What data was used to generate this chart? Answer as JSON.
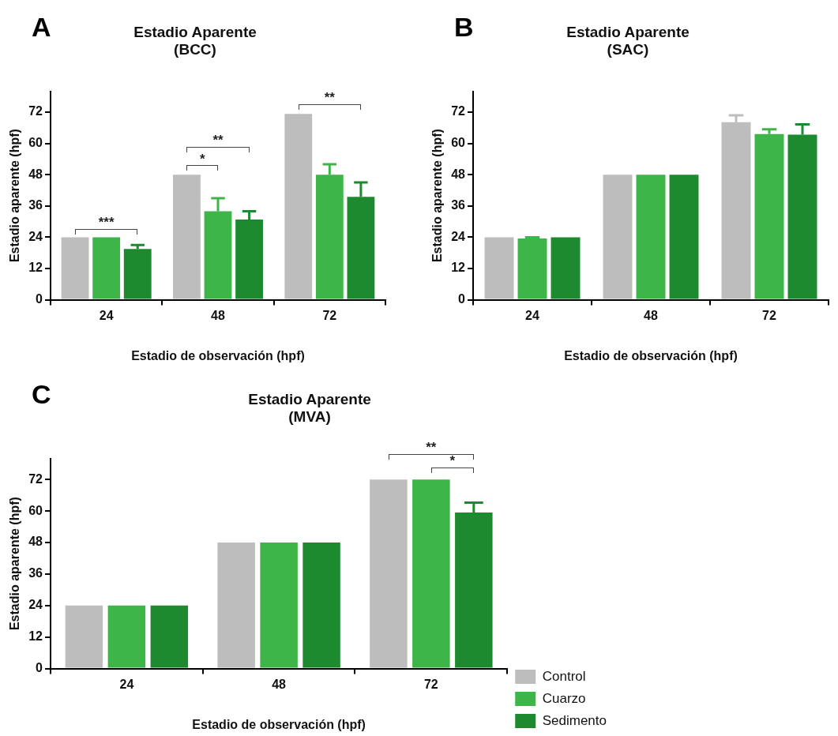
{
  "chart_data": [
    {
      "type": "bar",
      "title": "Estadio Aparente\n(BCC)",
      "xlabel": "Estadio de observación (hpf)",
      "ylabel": "Estadio aparente (hpf)",
      "categories": [
        "24",
        "48",
        "72"
      ],
      "ylim": [
        0,
        80
      ],
      "yticks": [
        0,
        12,
        24,
        36,
        48,
        60,
        72
      ],
      "legend": false,
      "series": [
        {
          "color": "#bdbdbd",
          "values": [
            24,
            48,
            71.3
          ],
          "errors": [
            null,
            null,
            null
          ]
        },
        {
          "color": "#3db549",
          "values": [
            24,
            34,
            48
          ],
          "errors": [
            null,
            5,
            4
          ]
        },
        {
          "color": "#1d8a2f",
          "values": [
            19.5,
            30.8,
            39.5
          ],
          "errors": [
            1.5,
            3.2,
            5.5
          ]
        }
      ],
      "annotations": [
        "A",
        "***",
        "*",
        "**",
        "**"
      ]
    },
    {
      "type": "bar",
      "title": "Estadio Aparente\n(SAC)",
      "xlabel": "Estadio de observación (hpf)",
      "ylabel": "Estadio aparente (hpf)",
      "categories": [
        "24",
        "48",
        "72"
      ],
      "ylim": [
        0,
        80
      ],
      "yticks": [
        0,
        12,
        24,
        36,
        48,
        60,
        72
      ],
      "legend": false,
      "series": [
        {
          "color": "#bdbdbd",
          "values": [
            24,
            48,
            68.1
          ],
          "errors": [
            null,
            null,
            2.7
          ]
        },
        {
          "color": "#3db549",
          "values": [
            23.5,
            48,
            63.6
          ],
          "errors": [
            0.5,
            null,
            1.8
          ]
        },
        {
          "color": "#1d8a2f",
          "values": [
            24,
            48,
            63.4
          ],
          "errors": [
            null,
            null,
            3.9
          ]
        }
      ],
      "annotations": [
        "B"
      ]
    },
    {
      "type": "bar",
      "title": "Estadio Aparente\n(MVA)",
      "xlabel": "Estadio de observación (hpf)",
      "ylabel": "Estadio aparente (hpf)",
      "categories": [
        "24",
        "48",
        "72"
      ],
      "ylim": [
        0,
        80
      ],
      "yticks": [
        0,
        12,
        24,
        36,
        48,
        60,
        72
      ],
      "legend": "right",
      "series": [
        {
          "name": "Control",
          "color": "#bdbdbd",
          "values": [
            24,
            48,
            72
          ],
          "errors": [
            null,
            null,
            null
          ]
        },
        {
          "name": "Cuarzo",
          "color": "#3db549",
          "values": [
            24,
            48,
            72
          ],
          "errors": [
            null,
            null,
            null
          ]
        },
        {
          "name": "Sedimento",
          "color": "#1d8a2f",
          "values": [
            24,
            48,
            59.4
          ],
          "errors": [
            null,
            null,
            3.8
          ]
        }
      ],
      "annotations": [
        "C",
        "**",
        "*"
      ]
    }
  ]
}
